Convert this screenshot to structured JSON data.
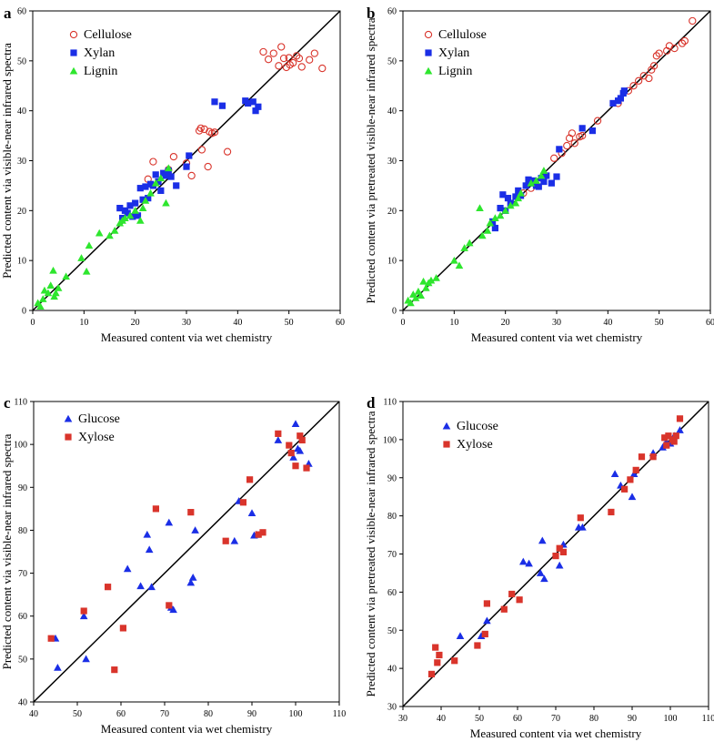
{
  "chart_data": [
    {
      "type": "scatter",
      "panel": "a",
      "xlabel": "Measured content via wet chemistry",
      "ylabel": "Predicted content via visible-near infrared spectra",
      "xlim": [
        0,
        60
      ],
      "ylim": [
        0,
        60
      ],
      "xticks": [
        0,
        10,
        20,
        30,
        40,
        50,
        60
      ],
      "yticks": [
        0,
        10,
        20,
        30,
        40,
        50,
        60
      ],
      "legend_position": "top-left",
      "reference_line": "1:1",
      "series": [
        {
          "name": "Cellulose",
          "marker": "open-circle",
          "color": "#d9342b",
          "x": [
            22.5,
            23.5,
            26.5,
            27.5,
            30,
            32.5,
            32.8,
            33.5,
            34.5,
            35,
            35.5,
            31,
            33,
            34.2,
            38,
            45,
            46,
            47,
            48,
            48.5,
            49,
            49.5,
            50,
            50.2,
            50.8,
            51.5,
            52,
            52.5,
            54,
            55,
            56.5
          ],
          "y": [
            26.3,
            29.8,
            28.2,
            30.8,
            29.5,
            36,
            36.5,
            36.3,
            35.8,
            35.5,
            35.7,
            27,
            32.2,
            28.8,
            31.8,
            51.8,
            50.3,
            51.5,
            49,
            52.8,
            50.5,
            48.7,
            50.6,
            49.2,
            49.6,
            51,
            50.5,
            48.8,
            50.2,
            51.5,
            48.5
          ]
        },
        {
          "name": "Xylan",
          "marker": "filled-square",
          "color": "#1a2ee6",
          "x": [
            17,
            17.5,
            18,
            18.5,
            19,
            19.5,
            20,
            20.5,
            21,
            21.5,
            22,
            22.5,
            23,
            23.5,
            24,
            24.5,
            25,
            25.5,
            26,
            26.5,
            27,
            28,
            30,
            30.5,
            35.5,
            37,
            41.5,
            42,
            43,
            43.5,
            44
          ],
          "y": [
            20.5,
            18.5,
            20,
            19.5,
            21,
            18.8,
            21.5,
            19,
            24.5,
            22.2,
            24.8,
            22.5,
            25.3,
            25,
            27.2,
            25.8,
            24,
            27.5,
            27,
            28,
            26.8,
            25,
            28.8,
            31,
            41.8,
            41,
            42,
            41.5,
            41.8,
            40,
            40.8
          ]
        },
        {
          "name": "Lignin",
          "marker": "filled-triangle",
          "color": "#2ee62e",
          "x": [
            1,
            1.5,
            2,
            2.3,
            3,
            3.5,
            4,
            4.2,
            4.5,
            5,
            6.5,
            9.5,
            10.5,
            11,
            13,
            15,
            16,
            17,
            17.5,
            18,
            19,
            20,
            21,
            21.5,
            22,
            23,
            24,
            25,
            26,
            26.5
          ],
          "y": [
            1.5,
            0.8,
            2.3,
            4,
            3.5,
            5,
            8,
            2.8,
            3.5,
            4.5,
            6.8,
            10.5,
            7.8,
            13,
            15.5,
            15,
            16,
            17.5,
            18,
            18.5,
            19,
            20,
            18,
            20.5,
            22,
            23.5,
            25.5,
            26.5,
            21.5,
            28.5
          ]
        }
      ]
    },
    {
      "type": "scatter",
      "panel": "b",
      "xlabel": "Measured content via wet chemistry",
      "ylabel": "Predicted content via pretreated visible-near infrared spectra",
      "xlim": [
        0,
        60
      ],
      "ylim": [
        0,
        60
      ],
      "xticks": [
        0,
        10,
        20,
        30,
        40,
        50,
        60
      ],
      "yticks": [
        0,
        10,
        20,
        30,
        40,
        50,
        60
      ],
      "legend_position": "top-left",
      "reference_line": "1:1",
      "series": [
        {
          "name": "Cellulose",
          "marker": "open-circle",
          "color": "#d9342b",
          "x": [
            23.5,
            25,
            29.5,
            31,
            32,
            32.5,
            33,
            33.5,
            34.5,
            35,
            38,
            42,
            44,
            45,
            46,
            47,
            48,
            48.5,
            49,
            49.5,
            50,
            51.5,
            52,
            53,
            54.5,
            55,
            56.5
          ],
          "y": [
            23.5,
            24.5,
            30.5,
            31.5,
            33,
            34.5,
            35.5,
            33.5,
            34.8,
            35,
            38,
            41.5,
            44,
            45,
            46,
            47,
            46.5,
            48.2,
            49,
            51,
            51.5,
            52,
            53,
            52.5,
            53.5,
            54,
            58
          ]
        },
        {
          "name": "Xylan",
          "marker": "filled-square",
          "color": "#1a2ee6",
          "x": [
            17.5,
            18,
            19,
            19.5,
            20,
            20.5,
            21,
            22,
            22.5,
            23,
            24,
            24.5,
            25,
            25.5,
            26,
            26.5,
            27,
            27.5,
            28,
            29,
            30,
            30.5,
            35,
            37,
            41,
            42,
            42.5,
            43,
            43.2
          ],
          "y": [
            17.8,
            16.5,
            20.5,
            23.2,
            20,
            22.5,
            21.5,
            22.8,
            24,
            23,
            25,
            26.2,
            25.5,
            26,
            25,
            24.8,
            26.5,
            25.8,
            27,
            25.5,
            26.8,
            32.3,
            36.5,
            36,
            41.5,
            42,
            42.5,
            43.5,
            44
          ]
        },
        {
          "name": "Lignin",
          "marker": "filled-triangle",
          "color": "#2ee62e",
          "x": [
            1,
            1.5,
            2,
            2.5,
            3,
            3.5,
            4,
            4.5,
            5,
            5.5,
            6.5,
            10,
            11,
            12,
            13,
            15,
            15.5,
            16.5,
            17,
            18,
            19,
            20,
            21,
            22,
            22.5,
            23,
            25,
            26,
            27,
            27.5
          ],
          "y": [
            2,
            1.5,
            3.2,
            2.5,
            3.8,
            3,
            5.8,
            4.5,
            5.5,
            6,
            6.5,
            10,
            9,
            12.5,
            13.5,
            20.5,
            15,
            16,
            17.5,
            18.5,
            19,
            20,
            21,
            21.5,
            22.5,
            23.5,
            25.5,
            26,
            27,
            28
          ]
        }
      ]
    },
    {
      "type": "scatter",
      "panel": "c",
      "xlabel": "Measured content via wet chemistry",
      "ylabel": "Predicted content via visible-near infrared spectra",
      "xlim": [
        40,
        110
      ],
      "ylim": [
        40,
        110
      ],
      "xticks": [
        40,
        50,
        60,
        70,
        80,
        90,
        100,
        110
      ],
      "yticks": [
        40,
        50,
        60,
        70,
        80,
        90,
        100,
        110
      ],
      "legend_position": "top-left",
      "reference_line": "1:1",
      "series": [
        {
          "name": "Glucose",
          "marker": "filled-triangle",
          "color": "#1a2ee6",
          "x": [
            45,
            45.5,
            51.5,
            52,
            61.5,
            64.5,
            66,
            66.5,
            67,
            71,
            71.5,
            72,
            76,
            76.5,
            77,
            86,
            87,
            90,
            90.5,
            91,
            96,
            99.5,
            100,
            100.5,
            101,
            103
          ],
          "y": [
            54.8,
            48,
            60,
            50,
            71,
            67,
            79,
            75.5,
            66.8,
            81.8,
            62,
            61.5,
            67.8,
            69,
            80,
            77.5,
            86.8,
            84,
            78.8,
            79,
            101,
            97,
            104.8,
            99,
            98.5,
            95.5
          ]
        },
        {
          "name": "Xylose",
          "marker": "filled-square",
          "color": "#d9342b",
          "x": [
            44,
            51.5,
            57,
            58.5,
            60.5,
            68,
            71,
            76,
            84,
            88,
            89.5,
            91.5,
            92.5,
            96,
            98.5,
            99,
            100,
            101,
            101.5,
            102.5
          ],
          "y": [
            54.8,
            61.2,
            66.8,
            47.5,
            57.2,
            85,
            62.5,
            84.2,
            77.5,
            86.5,
            91.8,
            79,
            79.5,
            102.5,
            99.8,
            98,
            95,
            102,
            101,
            94.5
          ]
        }
      ]
    },
    {
      "type": "scatter",
      "panel": "d",
      "xlabel": "Measured content via wet chemistry",
      "ylabel": "Predicted content via pretreated visible-near infrared spectra",
      "xlim": [
        30,
        110
      ],
      "ylim": [
        30,
        110
      ],
      "xticks": [
        30,
        40,
        50,
        60,
        70,
        80,
        90,
        100,
        110
      ],
      "yticks": [
        30,
        40,
        50,
        60,
        70,
        80,
        90,
        100,
        110
      ],
      "legend_position": "top-left",
      "reference_line": "1:1",
      "series": [
        {
          "name": "Glucose",
          "marker": "filled-triangle",
          "color": "#1a2ee6",
          "x": [
            45,
            50.5,
            52,
            61.5,
            63,
            66,
            66.5,
            67,
            71,
            72,
            76,
            77,
            85.5,
            87,
            90,
            90.5,
            95.5,
            98,
            99,
            100,
            100.5,
            101,
            102.5
          ],
          "y": [
            48.5,
            48.5,
            52.5,
            68,
            67.5,
            65,
            73.5,
            63.5,
            67,
            72.5,
            77,
            77,
            91,
            88,
            85,
            91,
            96.5,
            98,
            99.5,
            99,
            100,
            101,
            102.5
          ]
        },
        {
          "name": "Xylose",
          "marker": "filled-square",
          "color": "#d9342b",
          "x": [
            37.5,
            38.5,
            39,
            39.5,
            43.5,
            49.5,
            51.5,
            52,
            56.5,
            58.5,
            60.5,
            70,
            71,
            72,
            76.5,
            84.5,
            88,
            89.5,
            91,
            92.5,
            95.5,
            98.5,
            99,
            99.5,
            100.5,
            101,
            101.5,
            102.5
          ],
          "y": [
            38.5,
            45.5,
            41.5,
            43.5,
            42,
            46,
            49,
            57,
            55.5,
            59.5,
            58,
            69.5,
            71.5,
            70.5,
            79.5,
            81,
            87,
            89.5,
            92,
            95.5,
            95.5,
            100.5,
            98.5,
            101,
            100,
            99.5,
            101,
            105.5
          ]
        }
      ]
    }
  ]
}
